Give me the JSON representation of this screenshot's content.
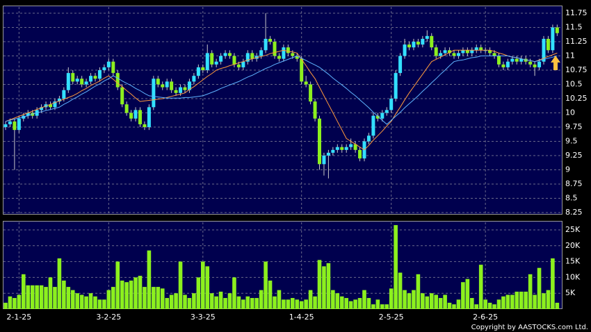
{
  "chart_data": [
    {
      "type": "candlestick",
      "up_color": "#33e0ff",
      "down_color": "#8cf01e",
      "wick_color": "#c8c8c8",
      "ylim": [
        8.226,
        11.86
      ],
      "yticks": [
        8.25,
        8.5,
        8.75,
        9,
        9.25,
        9.5,
        9.75,
        10,
        10.25,
        10.5,
        10.75,
        11,
        11.25,
        11.5,
        11.75
      ],
      "grid": true,
      "open": [
        9.75,
        9.8,
        9.85,
        9.7,
        9.9,
        9.95,
        10.0,
        9.95,
        10.05,
        10.1,
        10.15,
        10.1,
        10.2,
        10.25,
        10.4,
        10.7,
        10.55,
        10.6,
        10.5,
        10.55,
        10.65,
        10.6,
        10.75,
        10.8,
        10.9,
        10.7,
        10.45,
        10.15,
        10.0,
        9.9,
        10.05,
        9.8,
        9.75,
        10.1,
        10.6,
        10.5,
        10.45,
        10.55,
        10.4,
        10.35,
        10.45,
        10.4,
        10.55,
        10.65,
        10.8,
        10.75,
        11.05,
        10.85,
        10.9,
        11.0,
        11.05,
        11.0,
        10.85,
        10.8,
        10.9,
        11.05,
        10.95,
        11.0,
        11.1,
        11.3,
        11.25,
        11.0,
        10.95,
        11.15,
        11.05,
        11.0,
        10.95,
        10.55,
        10.5,
        10.2,
        9.9,
        9.1,
        9.25,
        9.3,
        9.35,
        9.4,
        9.35,
        9.4,
        9.45,
        9.35,
        9.2,
        9.5,
        9.6,
        9.95,
        9.9,
        10.0,
        10.05,
        10.25,
        10.7,
        11.0,
        11.2,
        11.15,
        11.25,
        11.2,
        11.3,
        11.35,
        11.15,
        11.0,
        11.05,
        11.1,
        11.05,
        11.0,
        11.05,
        11.1,
        11.05,
        11.1,
        11.15,
        11.1,
        11.1,
        11.05,
        11.0,
        10.85,
        10.8,
        10.9,
        10.95,
        10.9,
        10.95,
        10.9,
        10.85,
        10.8,
        10.9,
        11.3,
        11.1,
        11.5
      ],
      "high": [
        9.85,
        9.9,
        9.9,
        9.95,
        10.0,
        10.05,
        10.05,
        10.1,
        10.15,
        10.2,
        10.2,
        10.25,
        10.3,
        10.45,
        10.8,
        10.75,
        10.65,
        10.65,
        10.6,
        10.7,
        10.7,
        10.8,
        10.85,
        10.95,
        10.95,
        10.75,
        10.5,
        10.2,
        10.05,
        10.1,
        10.1,
        9.85,
        10.15,
        10.65,
        10.65,
        10.55,
        10.6,
        10.6,
        10.45,
        10.5,
        10.5,
        10.6,
        10.7,
        10.85,
        10.85,
        11.2,
        11.1,
        10.95,
        11.05,
        11.1,
        11.1,
        11.05,
        10.9,
        10.95,
        11.1,
        11.1,
        11.05,
        11.15,
        11.75,
        11.35,
        11.3,
        11.05,
        11.2,
        11.2,
        11.1,
        11.05,
        11.0,
        10.65,
        10.55,
        10.25,
        9.95,
        9.3,
        9.35,
        9.4,
        9.45,
        9.45,
        9.45,
        9.55,
        9.5,
        9.4,
        9.55,
        9.65,
        10.0,
        10.0,
        10.05,
        10.1,
        10.3,
        10.75,
        11.05,
        11.3,
        11.25,
        11.3,
        11.3,
        11.35,
        11.45,
        11.4,
        11.2,
        11.1,
        11.15,
        11.15,
        11.1,
        11.1,
        11.15,
        11.15,
        11.15,
        11.2,
        11.2,
        11.15,
        11.15,
        11.1,
        11.05,
        10.9,
        10.95,
        11.0,
        11.0,
        11.0,
        11.0,
        10.95,
        10.9,
        10.95,
        11.35,
        11.35,
        11.55,
        11.55
      ],
      "low": [
        9.7,
        9.75,
        9.0,
        9.65,
        9.85,
        9.9,
        9.9,
        9.9,
        10.0,
        10.05,
        10.05,
        10.05,
        10.15,
        10.2,
        10.35,
        10.5,
        10.5,
        10.45,
        10.45,
        10.5,
        10.55,
        10.55,
        10.7,
        10.75,
        10.65,
        10.4,
        10.1,
        9.95,
        9.85,
        9.85,
        9.75,
        9.7,
        9.7,
        10.05,
        10.45,
        10.4,
        10.4,
        10.35,
        10.3,
        10.3,
        10.35,
        10.35,
        10.5,
        10.6,
        10.7,
        10.7,
        10.8,
        10.8,
        10.85,
        10.95,
        10.95,
        10.8,
        10.75,
        10.75,
        10.85,
        10.9,
        10.9,
        10.95,
        11.05,
        11.2,
        10.95,
        10.9,
        10.9,
        11.0,
        10.95,
        10.9,
        10.5,
        10.45,
        10.15,
        9.85,
        9.0,
        8.9,
        8.85,
        9.25,
        9.3,
        9.3,
        9.3,
        9.35,
        9.3,
        9.15,
        9.15,
        9.45,
        9.55,
        9.85,
        9.85,
        9.95,
        10.0,
        10.2,
        10.65,
        10.95,
        11.1,
        11.1,
        11.15,
        11.15,
        11.25,
        11.1,
        10.95,
        10.95,
        11.0,
        11.0,
        10.95,
        10.95,
        11.0,
        11.0,
        11.0,
        11.05,
        11.05,
        11.05,
        11.0,
        10.95,
        10.8,
        10.75,
        10.75,
        10.85,
        10.85,
        10.85,
        10.85,
        10.8,
        10.65,
        10.75,
        10.85,
        11.05,
        11.05,
        11.35
      ],
      "close": [
        9.8,
        9.85,
        9.7,
        9.9,
        9.95,
        10.0,
        9.95,
        10.05,
        10.1,
        10.15,
        10.1,
        10.2,
        10.25,
        10.4,
        10.7,
        10.55,
        10.6,
        10.5,
        10.55,
        10.65,
        10.6,
        10.75,
        10.8,
        10.9,
        10.7,
        10.45,
        10.15,
        10.0,
        9.9,
        10.05,
        9.8,
        9.75,
        10.1,
        10.6,
        10.5,
        10.45,
        10.55,
        10.4,
        10.35,
        10.45,
        10.4,
        10.55,
        10.65,
        10.8,
        10.75,
        11.05,
        10.85,
        10.9,
        11.0,
        11.05,
        11.0,
        10.85,
        10.8,
        10.9,
        11.05,
        10.95,
        11.0,
        11.1,
        11.3,
        11.25,
        11.0,
        10.95,
        11.15,
        11.05,
        11.0,
        10.95,
        10.55,
        10.5,
        10.2,
        9.9,
        9.1,
        9.25,
        9.3,
        9.35,
        9.4,
        9.35,
        9.4,
        9.45,
        9.35,
        9.2,
        9.5,
        9.6,
        9.95,
        9.9,
        10.0,
        10.05,
        10.25,
        10.7,
        11.0,
        11.2,
        11.15,
        11.25,
        11.2,
        11.3,
        11.35,
        11.15,
        11.0,
        11.05,
        11.1,
        11.05,
        11.0,
        11.05,
        11.1,
        11.05,
        11.1,
        11.15,
        11.1,
        11.1,
        11.05,
        11.0,
        10.85,
        10.8,
        10.9,
        10.95,
        10.9,
        10.95,
        10.9,
        10.85,
        10.8,
        10.9,
        11.3,
        11.1,
        11.5,
        11.4
      ],
      "series": [
        {
          "color": "#ff9a3c",
          "values": [
            9.85,
            9.88,
            9.91,
            9.94,
            9.97,
            10.0,
            10.03,
            10.06,
            10.09,
            10.12,
            10.15,
            10.18,
            10.21,
            10.24,
            10.27,
            10.3,
            10.34,
            10.39,
            10.43,
            10.48,
            10.52,
            10.56,
            10.61,
            10.65,
            10.59,
            10.52,
            10.46,
            10.39,
            10.33,
            10.26,
            10.2,
            10.21,
            10.22,
            10.23,
            10.24,
            10.25,
            10.27,
            10.29,
            10.31,
            10.33,
            10.35,
            10.41,
            10.46,
            10.52,
            10.58,
            10.64,
            10.69,
            10.75,
            10.78,
            10.8,
            10.83,
            10.85,
            10.88,
            10.9,
            10.93,
            10.95,
            10.97,
            10.99,
            11.01,
            11.04,
            11.06,
            11.08,
            11.1,
            11.08,
            11.07,
            11.05,
            10.94,
            10.83,
            10.71,
            10.6,
            10.45,
            10.3,
            10.15,
            10.0,
            9.85,
            9.7,
            9.55,
            9.5,
            9.45,
            9.4,
            9.35,
            9.43,
            9.52,
            9.6,
            9.68,
            9.77,
            9.85,
            9.98,
            10.1,
            10.23,
            10.35,
            10.46,
            10.57,
            10.68,
            10.79,
            10.9,
            10.94,
            10.98,
            11.02,
            11.06,
            11.1,
            11.1,
            11.1,
            11.1,
            11.1,
            11.1,
            11.1,
            11.1,
            11.1,
            11.08,
            11.05,
            11.03,
            11.0,
            10.98,
            10.97,
            10.95,
            10.93,
            10.92,
            10.9,
            10.93,
            10.96,
            10.99,
            11.02,
            11.05
          ]
        },
        {
          "color": "#5fb4ff",
          "values": [
            9.85,
            9.87,
            9.89,
            9.91,
            9.93,
            9.95,
            9.98,
            10.0,
            10.02,
            10.04,
            10.06,
            10.08,
            10.1,
            10.15,
            10.19,
            10.24,
            10.28,
            10.33,
            10.37,
            10.42,
            10.47,
            10.51,
            10.56,
            10.6,
            10.65,
            10.61,
            10.56,
            10.52,
            10.48,
            10.43,
            10.39,
            10.34,
            10.3,
            10.29,
            10.28,
            10.27,
            10.26,
            10.26,
            10.26,
            10.26,
            10.27,
            10.27,
            10.28,
            10.29,
            10.3,
            10.33,
            10.36,
            10.39,
            10.43,
            10.46,
            10.49,
            10.52,
            10.55,
            10.59,
            10.63,
            10.66,
            10.7,
            10.74,
            10.78,
            10.81,
            10.85,
            10.88,
            10.91,
            10.94,
            10.97,
            11.0,
            10.96,
            10.92,
            10.88,
            10.84,
            10.8,
            10.74,
            10.68,
            10.61,
            10.55,
            10.49,
            10.43,
            10.36,
            10.3,
            10.23,
            10.16,
            10.09,
            10.01,
            9.94,
            9.87,
            9.8,
            9.87,
            9.94,
            10.01,
            10.09,
            10.16,
            10.23,
            10.3,
            10.38,
            10.45,
            10.53,
            10.6,
            10.68,
            10.75,
            10.83,
            10.9,
            10.92,
            10.93,
            10.95,
            10.97,
            10.98,
            11.0,
            11.0,
            11.0,
            11.0,
            11.0,
            11.0,
            11.0,
            10.98,
            10.97,
            10.95,
            10.93,
            10.92,
            10.9,
            10.92,
            10.94,
            10.96,
            10.98,
            11.0
          ]
        }
      ]
    },
    {
      "type": "bar",
      "color": "#8cf01e",
      "ylim": [
        0,
        27400
      ],
      "grid": true,
      "yticks": [
        {
          "value": 5000,
          "label": "5K"
        },
        {
          "value": 10000,
          "label": "10K"
        },
        {
          "value": 15000,
          "label": "15K"
        },
        {
          "value": 20000,
          "label": "20K"
        },
        {
          "value": 25000,
          "label": "25K"
        }
      ],
      "categories": [
        null,
        null,
        null,
        "2-1-25",
        null,
        null,
        null,
        null,
        null,
        null,
        null,
        null,
        null,
        null,
        null,
        null,
        null,
        null,
        null,
        null,
        null,
        null,
        null,
        "3-2-25",
        null,
        null,
        null,
        null,
        null,
        null,
        null,
        null,
        null,
        null,
        null,
        null,
        null,
        null,
        null,
        null,
        null,
        null,
        null,
        null,
        "3-3-25",
        null,
        null,
        null,
        null,
        null,
        null,
        null,
        null,
        null,
        null,
        null,
        null,
        null,
        null,
        null,
        null,
        null,
        null,
        null,
        null,
        null,
        "1-4-25",
        null,
        null,
        null,
        null,
        null,
        null,
        null,
        null,
        null,
        null,
        null,
        null,
        null,
        null,
        null,
        null,
        null,
        null,
        null,
        "2-5-25",
        null,
        null,
        null,
        null,
        null,
        null,
        null,
        null,
        null,
        null,
        null,
        null,
        null,
        null,
        null,
        null,
        null,
        null,
        null,
        null,
        "2-6-25",
        null,
        null,
        null,
        null,
        null,
        null,
        null,
        null,
        null,
        null,
        null,
        null,
        null,
        null,
        null,
        null
      ],
      "values": [
        2000,
        4000,
        3500,
        4500,
        11000,
        7500,
        7500,
        7500,
        7500,
        7000,
        10000,
        7000,
        16000,
        9000,
        7000,
        6000,
        5000,
        4500,
        4000,
        5000,
        4000,
        3000,
        3000,
        6000,
        7000,
        15000,
        9000,
        8500,
        9000,
        10000,
        10500,
        7000,
        18500,
        7000,
        7000,
        6500,
        3500,
        4500,
        5000,
        15000,
        4500,
        3500,
        5000,
        10000,
        15000,
        13500,
        5000,
        4000,
        5500,
        3500,
        5000,
        10000,
        4000,
        3000,
        4000,
        3500,
        3500,
        6000,
        15000,
        9000,
        4000,
        6000,
        3000,
        3000,
        3500,
        3000,
        2500,
        3000,
        6000,
        4000,
        15500,
        13500,
        14500,
        6000,
        5000,
        4000,
        3500,
        2500,
        3000,
        3500,
        6000,
        3500,
        1500,
        3000,
        1500,
        1500,
        6500,
        26500,
        11500,
        6000,
        5000,
        6000,
        11000,
        5000,
        4000,
        5000,
        4500,
        3500,
        4500,
        2000,
        1500,
        3000,
        8500,
        9500,
        3500,
        1500,
        14000,
        3000,
        2000,
        1500,
        3000,
        4000,
        4500,
        4500,
        5500,
        5500,
        5500,
        11000,
        4500,
        13000,
        5000,
        6000,
        16000,
        2000
      ]
    }
  ],
  "footer": "Copyright by AASTOCKS.com Ltd."
}
